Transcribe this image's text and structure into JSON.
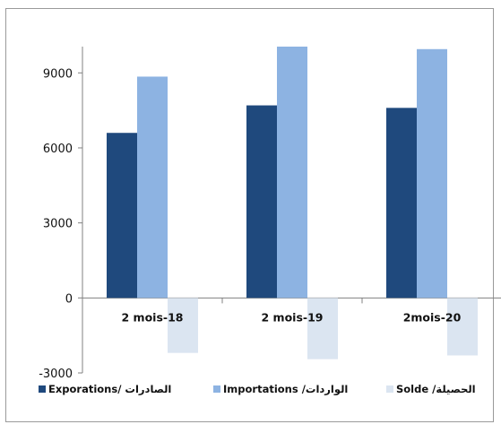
{
  "chart_data": {
    "type": "bar",
    "categories": [
      "2 mois-18",
      "2 mois-19",
      "2mois-20"
    ],
    "series": [
      {
        "name": "Exporations/  الصادرات",
        "values": [
          6600,
          7700,
          7600
        ],
        "color": "#1f497d"
      },
      {
        "name": "Importations /الواردات",
        "values": [
          8850,
          10050,
          9950
        ],
        "color": "#8db3e2"
      },
      {
        "name": "Solde /الحصيلة",
        "values": [
          -2200,
          -2450,
          -2300
        ],
        "color": "#dbe5f1"
      }
    ],
    "ylim": [
      -3000,
      10050
    ],
    "yticks": [
      -3000,
      0,
      3000,
      6000,
      9000
    ],
    "ytick_labels": [
      "-3000",
      "0",
      "3000",
      "6000",
      "9000"
    ],
    "grid": false,
    "legend_position": "bottom"
  }
}
